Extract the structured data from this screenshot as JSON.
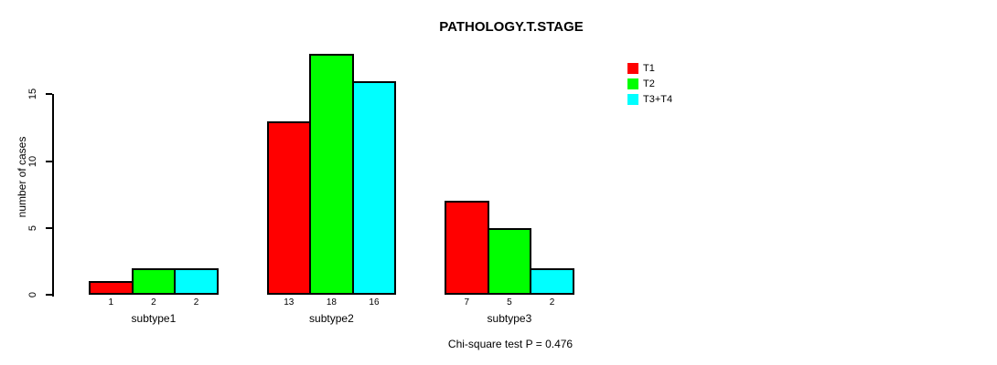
{
  "chart_data": {
    "type": "bar",
    "title": "PATHOLOGY.T.STAGE",
    "ylabel": "number of cases",
    "xlabel": "",
    "categories": [
      "subtype1",
      "subtype2",
      "subtype3"
    ],
    "series": [
      {
        "name": "T1",
        "color": "#FF0000",
        "values": [
          1,
          13,
          7
        ]
      },
      {
        "name": "T2",
        "color": "#00FF00",
        "values": [
          2,
          18,
          5
        ]
      },
      {
        "name": "T3+T4",
        "color": "#00FFFF",
        "values": [
          2,
          16,
          2
        ]
      }
    ],
    "yticks": [
      0,
      5,
      10,
      15
    ],
    "ylim": [
      0,
      18
    ],
    "grid": false,
    "legend_position": "top-right",
    "bar_value_labels_shown": true,
    "annotation": "Chi-square test P = 0.476",
    "bar_border_color": "#000000",
    "background_color": "#FFFFFF"
  }
}
